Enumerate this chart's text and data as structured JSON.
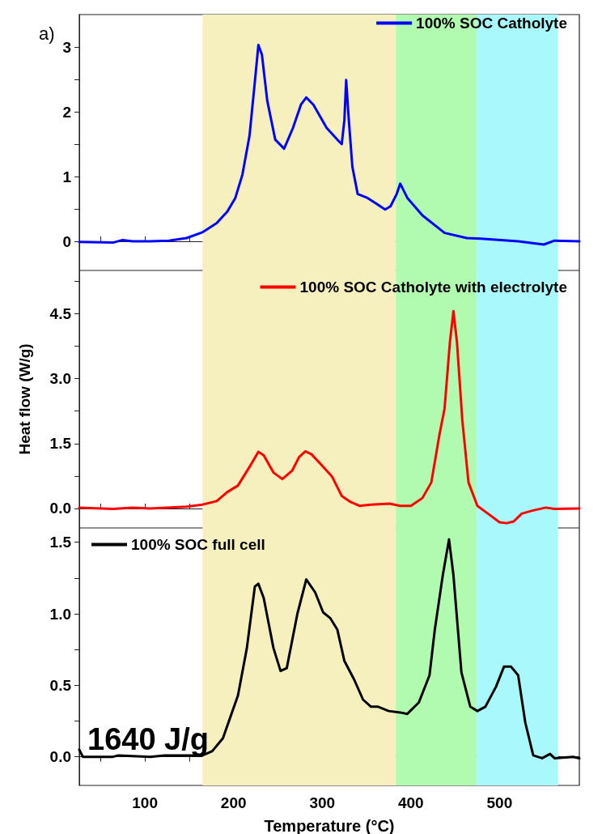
{
  "chart_data": [
    {
      "type": "line",
      "xlim": [
        26,
        590
      ],
      "xticks": [
        {
          "value": 50,
          "label": null
        },
        100,
        {
          "value": 150,
          "label": null
        },
        200,
        {
          "value": 250,
          "label": null
        },
        300,
        {
          "value": 350,
          "label": null
        },
        400,
        {
          "value": 450,
          "label": null
        },
        500,
        {
          "value": 550,
          "label": null
        }
      ],
      "ylim": [
        -0.45,
        3.5
      ],
      "yticks": [
        0,
        {
          "value": 0.5,
          "label": null
        },
        1,
        {
          "value": 1.5,
          "label": null
        },
        2,
        {
          "value": 2.5,
          "label": null
        },
        3
      ],
      "tick_labels": "y",
      "legend": "top right",
      "annotations": [
        "a)"
      ],
      "bands": [
        {
          "axis": "x",
          "from": 165,
          "to": 383,
          "color": "#f5f0be"
        },
        {
          "axis": "x",
          "from": 383,
          "to": 474,
          "color": "#b0fbaf"
        },
        {
          "axis": "x",
          "from": 474,
          "to": 566,
          "color": "#a8f8fc"
        }
      ],
      "series": [
        {
          "name": "100% SOC Catholyte",
          "color": "#0000ff",
          "x": [
            26,
            64,
            75,
            86,
            106,
            127,
            147,
            165,
            181,
            193,
            202,
            210,
            218,
            224,
            228,
            232,
            238,
            247,
            257,
            267,
            276,
            282,
            290,
            305,
            319,
            322,
            325,
            327,
            330,
            334,
            340,
            351,
            361,
            371,
            377,
            384,
            388,
            396,
            413,
            438,
            463,
            479,
            521,
            550,
            562,
            590
          ],
          "values": [
            -0.01,
            -0.02,
            0.02,
            0,
            0,
            0.01,
            0.05,
            0.14,
            0.28,
            0.46,
            0.67,
            1.03,
            1.63,
            2.46,
            3.03,
            2.88,
            2.17,
            1.57,
            1.43,
            1.75,
            2.11,
            2.22,
            2.11,
            1.75,
            1.54,
            1.5,
            1.87,
            2.49,
            1.87,
            1.15,
            0.73,
            0.67,
            0.58,
            0.49,
            0.54,
            0.73,
            0.89,
            0.67,
            0.4,
            0.13,
            0.05,
            0.04,
            0,
            -0.05,
            0.01,
            0
          ]
        }
      ]
    },
    {
      "type": "line",
      "xlim": [
        26,
        590
      ],
      "xticks": [
        {
          "value": 50,
          "label": null
        },
        100,
        {
          "value": 150,
          "label": null
        },
        200,
        {
          "value": 250,
          "label": null
        },
        300,
        {
          "value": 350,
          "label": null
        },
        400,
        {
          "value": 450,
          "label": null
        },
        500,
        {
          "value": 550,
          "label": null
        }
      ],
      "ylim": [
        -0.45,
        5.5
      ],
      "yticks": [
        {
          "value": 0,
          "label": "0.0"
        },
        {
          "value": 0.75,
          "label": null
        },
        1.5,
        {
          "value": 2.25,
          "label": null
        },
        {
          "value": 3,
          "label": "3.0"
        },
        {
          "value": 3.75,
          "label": null
        },
        4.5,
        {
          "value": 5.25,
          "label": null
        }
      ],
      "ylabel": "Heat flow (W/g)",
      "tick_labels": "y",
      "legend": "top right",
      "bands": [
        {
          "axis": "x",
          "from": 165,
          "to": 383,
          "color": "#f5f0be"
        },
        {
          "axis": "x",
          "from": 383,
          "to": 474,
          "color": "#b0fbaf"
        },
        {
          "axis": "x",
          "from": 474,
          "to": 566,
          "color": "#a8f8fc"
        }
      ],
      "series": [
        {
          "name": "100% SOC Catholyte with electrolyte",
          "color": "#ff0000",
          "x": [
            26,
            64,
            86,
            106,
            147,
            165,
            181,
            193,
            205,
            218,
            228,
            234,
            245,
            255,
            266,
            274,
            281,
            288,
            299,
            311,
            322,
            332,
            342,
            355,
            376,
            388,
            400,
            413,
            423,
            432,
            438,
            444,
            448,
            452,
            458,
            465,
            475,
            487,
            500,
            508,
            516,
            525,
            537,
            552,
            562,
            590
          ],
          "values": [
            0.02,
            -0.01,
            0.02,
            0,
            0.04,
            0.09,
            0.17,
            0.38,
            0.53,
            0.96,
            1.31,
            1.23,
            0.83,
            0.68,
            0.87,
            1.19,
            1.32,
            1.25,
            1.01,
            0.74,
            0.29,
            0.15,
            0.06,
            0.09,
            0.11,
            0.06,
            0.06,
            0.24,
            0.6,
            1.68,
            2.31,
            3.84,
            4.56,
            3.84,
            2.04,
            0.6,
            0.06,
            -0.12,
            -0.32,
            -0.34,
            -0.3,
            -0.12,
            -0.05,
            0.02,
            -0.01,
            0
          ]
        }
      ]
    },
    {
      "type": "line",
      "xlim": [
        26,
        590
      ],
      "xticks": [
        {
          "value": 50,
          "label": null
        },
        100,
        {
          "value": 150,
          "label": null
        },
        200,
        {
          "value": 250,
          "label": null
        },
        300,
        {
          "value": 350,
          "label": null
        },
        400,
        {
          "value": 450,
          "label": null
        },
        500,
        {
          "value": 550,
          "label": null
        }
      ],
      "ylim": [
        -0.2,
        1.6
      ],
      "yticks": [
        {
          "value": 0,
          "label": "0.0"
        },
        {
          "value": 0.25,
          "label": null
        },
        {
          "value": 0.5,
          "label": "0.5"
        },
        {
          "value": 0.75,
          "label": null
        },
        {
          "value": 1,
          "label": "1.0"
        },
        {
          "value": 1.25,
          "label": null
        },
        {
          "value": 1.5,
          "label": "1.5"
        }
      ],
      "xlabel": "Temperature (°C)",
      "legend": "top left",
      "annotations": [
        "1640 J/g"
      ],
      "bands": [
        {
          "axis": "x",
          "from": 165,
          "to": 383,
          "color": "#f5f0be"
        },
        {
          "axis": "x",
          "from": 383,
          "to": 474,
          "color": "#b0fbaf"
        },
        {
          "axis": "x",
          "from": 474,
          "to": 566,
          "color": "#a8f8fc"
        }
      ],
      "series": [
        {
          "name": "100% SOC full cell",
          "color": "#000000",
          "x": [
            26,
            30,
            64,
            70,
            106,
            122,
            165,
            176,
            188,
            205,
            215,
            224,
            228,
            234,
            245,
            253,
            260,
            272,
            282,
            292,
            301,
            309,
            317,
            325,
            336,
            346,
            355,
            363,
            375,
            388,
            396,
            409,
            421,
            427,
            436,
            443,
            448,
            457,
            467,
            475,
            484,
            496,
            505,
            513,
            521,
            529,
            538,
            548,
            557,
            562,
            583,
            590
          ],
          "values": [
            0.05,
            0,
            0,
            0.01,
            0,
            0.01,
            0.01,
            0.04,
            0.13,
            0.43,
            0.76,
            1.19,
            1.21,
            1.11,
            0.76,
            0.6,
            0.62,
            1,
            1.24,
            1.15,
            1.01,
            0.97,
            0.89,
            0.67,
            0.54,
            0.4,
            0.35,
            0.35,
            0.32,
            0.31,
            0.3,
            0.38,
            0.57,
            0.89,
            1.27,
            1.52,
            1.27,
            0.59,
            0.35,
            0.32,
            0.35,
            0.49,
            0.63,
            0.63,
            0.57,
            0.24,
            0.01,
            -0.01,
            0.02,
            -0.01,
            0,
            -0.01
          ]
        }
      ]
    }
  ]
}
